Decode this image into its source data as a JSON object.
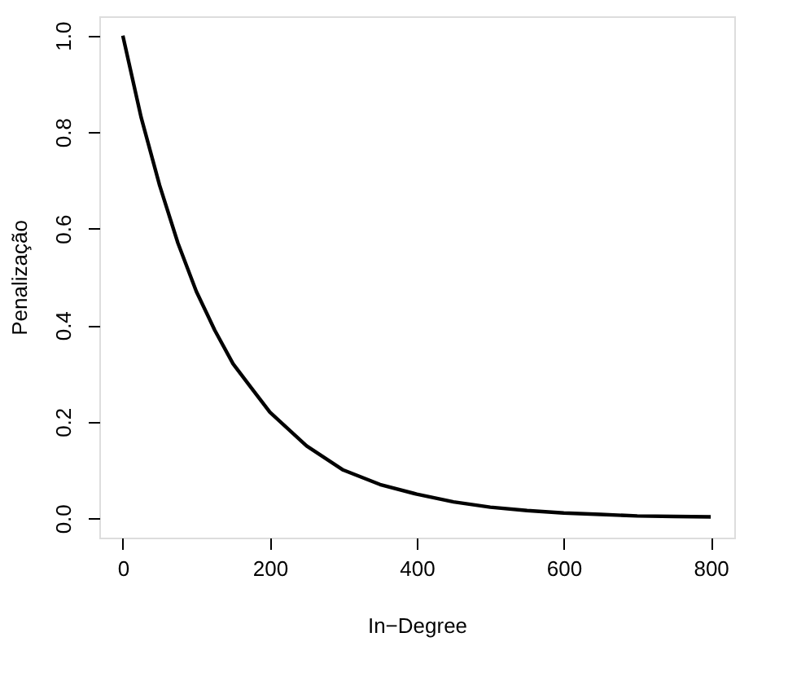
{
  "chart_data": {
    "type": "line",
    "xlabel": "In−Degree",
    "ylabel": "Penalização",
    "x": [
      0,
      25,
      50,
      75,
      100,
      125,
      150,
      175,
      200,
      250,
      300,
      350,
      400,
      450,
      500,
      550,
      600,
      650,
      700,
      750,
      800
    ],
    "series": [
      {
        "color": "#000000",
        "values": [
          1.0,
          0.83,
          0.69,
          0.57,
          0.47,
          0.39,
          0.32,
          0.27,
          0.22,
          0.15,
          0.1,
          0.07,
          0.05,
          0.034,
          0.023,
          0.016,
          0.011,
          0.008,
          0.005,
          0.004,
          0.003
        ]
      }
    ],
    "xlim": [
      -32,
      832
    ],
    "ylim": [
      -0.04,
      1.04
    ],
    "xticks": [
      0,
      200,
      400,
      600,
      800
    ],
    "yticks": [
      {
        "value": 0,
        "label": "0.0"
      },
      0.2,
      0.4,
      0.6,
      0.8,
      {
        "value": 1,
        "label": "1.0"
      }
    ],
    "grid": false,
    "legend": false,
    "marker": "none",
    "line_style": "solid"
  }
}
